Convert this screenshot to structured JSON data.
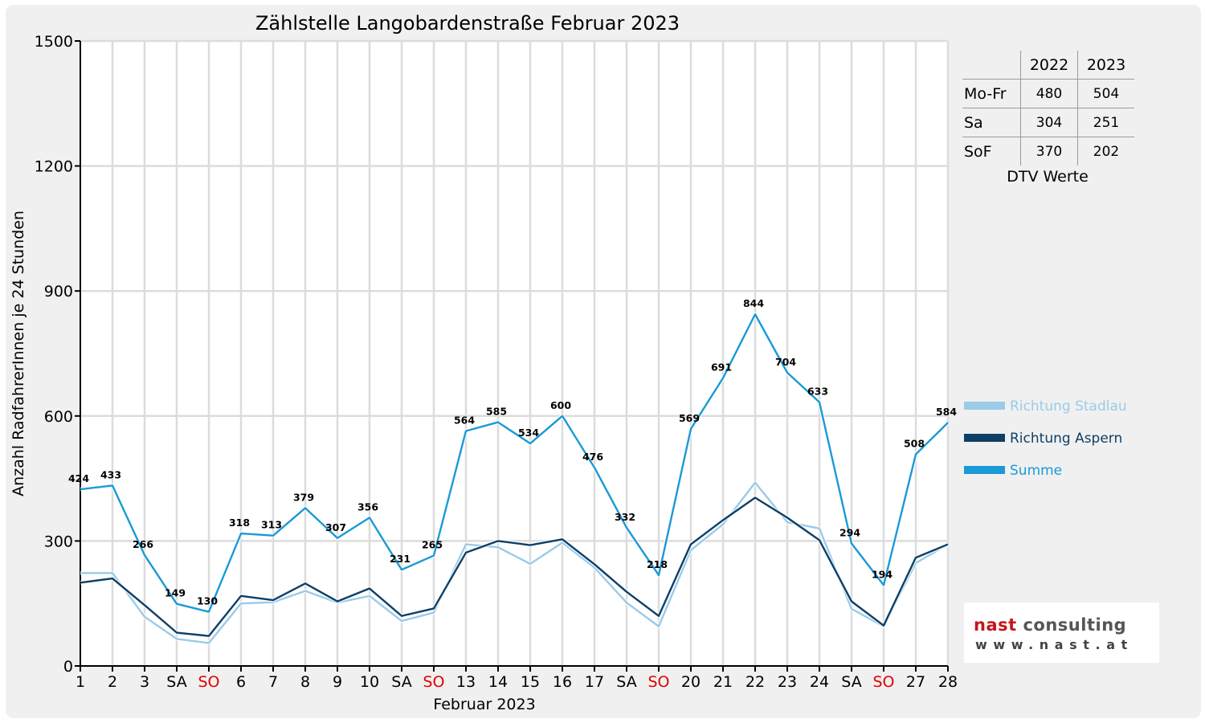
{
  "chart_data": {
    "type": "line",
    "title": "Zählstelle Langobardenstraße Februar 2023",
    "xlabel": "Februar 2023",
    "ylabel": "Anzahl RadfahrerInnen je 24 Stunden",
    "ylim": [
      0,
      1500
    ],
    "y_ticks": [
      "0",
      "300",
      "600",
      "900",
      "1200",
      "1500"
    ],
    "grid": true,
    "legend_position": "right",
    "x": [
      1,
      2,
      3,
      4,
      5,
      6,
      7,
      8,
      9,
      10,
      11,
      12,
      13,
      14,
      15,
      16,
      17,
      18,
      19,
      20,
      21,
      22,
      23,
      24,
      25,
      26,
      27,
      28
    ],
    "x_tick_labels": [
      "1",
      "2",
      "3",
      "SA",
      "SO",
      "6",
      "7",
      "8",
      "9",
      "10",
      "SA",
      "SO",
      "13",
      "14",
      "15",
      "16",
      "17",
      "SA",
      "SO",
      "20",
      "21",
      "22",
      "23",
      "24",
      "SA",
      "SO",
      "27",
      "28"
    ],
    "x_tick_colors": [
      "#000000",
      "#000000",
      "#000000",
      "#000000",
      "#e00000",
      "#000000",
      "#000000",
      "#000000",
      "#000000",
      "#000000",
      "#000000",
      "#e00000",
      "#000000",
      "#000000",
      "#000000",
      "#000000",
      "#000000",
      "#000000",
      "#e00000",
      "#000000",
      "#000000",
      "#000000",
      "#000000",
      "#000000",
      "#000000",
      "#e00000",
      "#000000",
      "#000000"
    ],
    "series": [
      {
        "name": "Richtung Stadlau",
        "color": "#9acbe8",
        "values": [
          223,
          223,
          118,
          65,
          55,
          150,
          153,
          180,
          152,
          168,
          108,
          128,
          292,
          285,
          245,
          296,
          236,
          152,
          95,
          278,
          340,
          440,
          345,
          330,
          137,
          95,
          247,
          292
        ]
      },
      {
        "name": "Richtung Aspern",
        "color": "#0e3f66",
        "values": [
          200,
          210,
          146,
          80,
          72,
          168,
          158,
          198,
          155,
          186,
          120,
          138,
          272,
          300,
          290,
          304,
          244,
          178,
          120,
          292,
          350,
          404,
          356,
          302,
          155,
          97,
          260,
          292
        ]
      },
      {
        "name": "Summe",
        "color": "#1a9ad6",
        "values": [
          424,
          433,
          266,
          149,
          130,
          318,
          313,
          379,
          307,
          356,
          231,
          265,
          564,
          585,
          534,
          600,
          476,
          332,
          218,
          569,
          691,
          844,
          704,
          633,
          294,
          194,
          508,
          584
        ]
      }
    ],
    "data_labels": [
      "424",
      "433",
      "266",
      "149",
      "130",
      "318",
      "313",
      "379",
      "307",
      "356",
      "231",
      "265",
      "564",
      "585",
      "534",
      "600",
      "476",
      "332",
      "218",
      "569",
      "691",
      "844",
      "704",
      "633",
      "294",
      "194",
      "508",
      "584"
    ]
  },
  "dtv_table": {
    "columns": [
      "2022",
      "2023"
    ],
    "rows": [
      {
        "label": "Mo-Fr",
        "v2022": "480",
        "v2023": "504"
      },
      {
        "label": "Sa",
        "v2022": "304",
        "v2023": "251"
      },
      {
        "label": "SoF",
        "v2022": "370",
        "v2023": "202"
      }
    ],
    "caption": "DTV Werte"
  },
  "logo": {
    "name_part1": "nast",
    "name_part2": " consulting",
    "url": "www.nast.at"
  }
}
